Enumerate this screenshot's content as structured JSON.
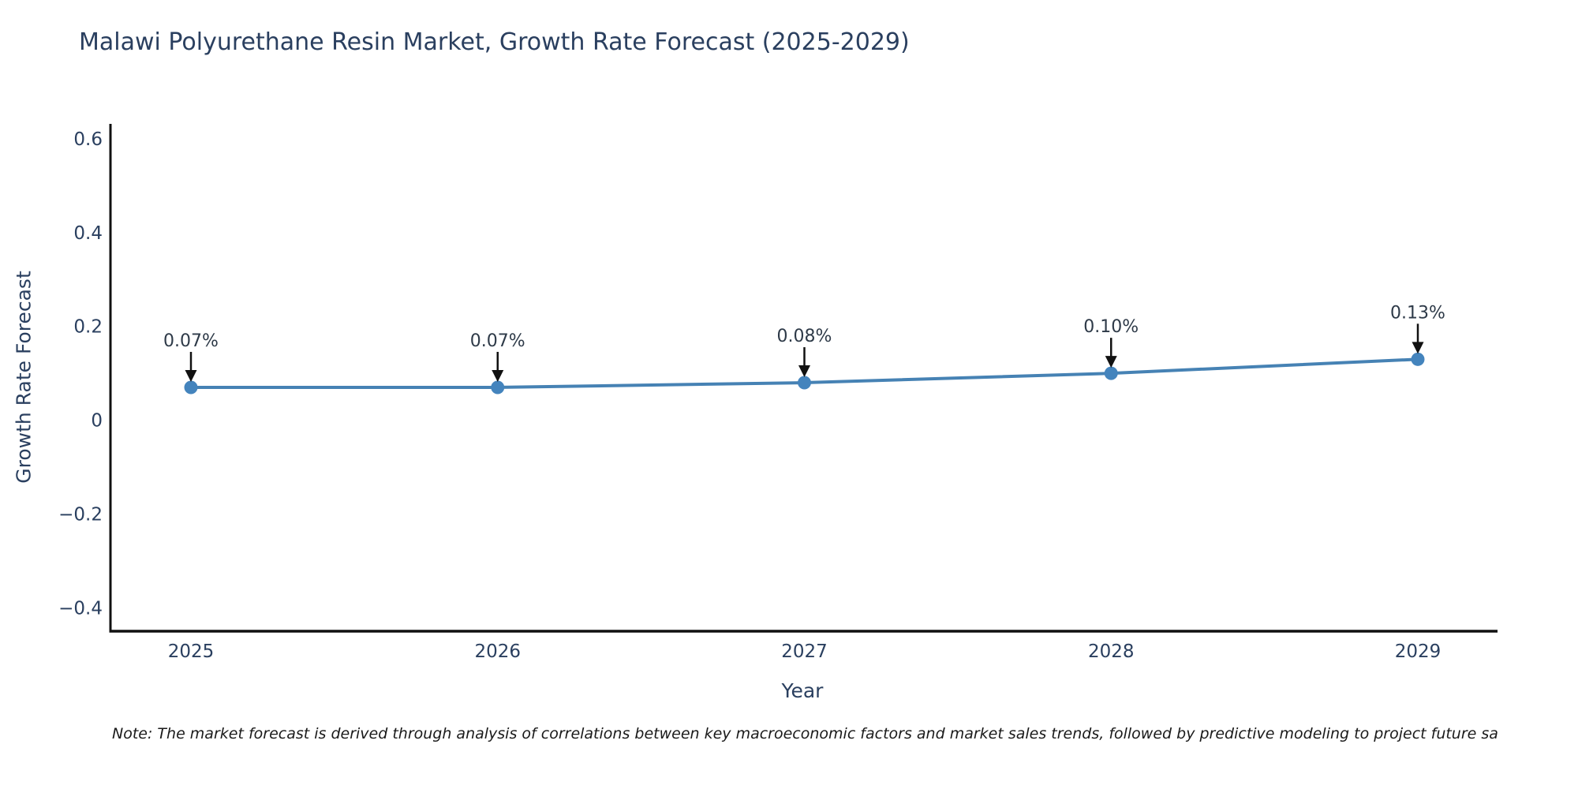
{
  "title": "Malawi Polyurethane Resin Market, Growth Rate Forecast (2025-2029)",
  "note": "Note: The market forecast is derived through analysis of correlations between key macroeconomic factors and market sales trends, followed by predictive modeling to project future sa",
  "chart_data": {
    "type": "line",
    "title": "Malawi Polyurethane Resin Market, Growth Rate Forecast (2025-2029)",
    "xlabel": "Year",
    "ylabel": "Growth Rate Forecast",
    "categories": [
      "2025",
      "2026",
      "2027",
      "2028",
      "2029"
    ],
    "values": [
      0.07,
      0.07,
      0.08,
      0.1,
      0.13
    ],
    "point_labels": [
      "0.07%",
      "0.07%",
      "0.08%",
      "0.10%",
      "0.13%"
    ],
    "yticks": [
      0.6,
      0.4,
      0.2,
      0,
      -0.2,
      -0.4
    ],
    "ylim": [
      -0.45,
      0.632
    ],
    "grid": false,
    "legend_position": "none",
    "line_color": "#4682b4",
    "marker_color": "#4484bd",
    "axis_color": "#111111",
    "text_color": "#2a3f5f",
    "annotation_color": "#2e3a48",
    "arrow_color": "#111111"
  }
}
